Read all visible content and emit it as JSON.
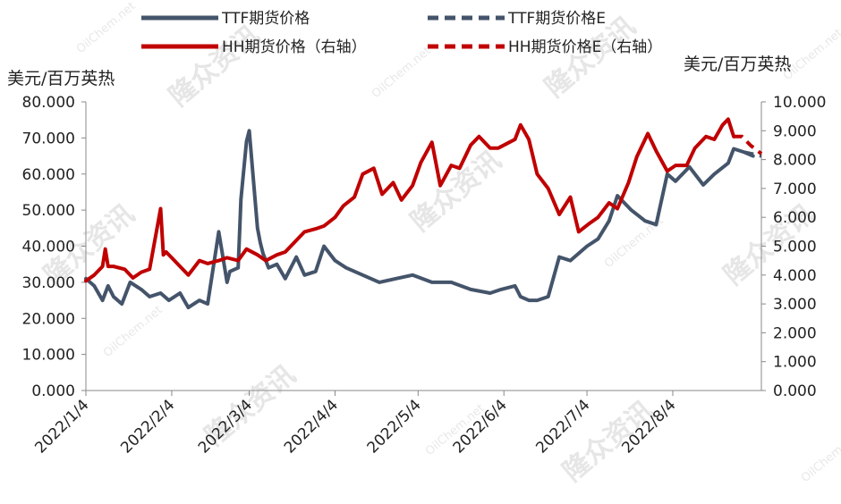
{
  "chart_data": {
    "type": "line",
    "left_axis_unit": "美元/百万英热",
    "right_axis_unit": "美元/百万英热",
    "left_ylim": [
      0,
      80
    ],
    "right_ylim": [
      0,
      10
    ],
    "left_ticks": [
      "0.000",
      "10.000",
      "20.000",
      "30.000",
      "40.000",
      "50.000",
      "60.000",
      "70.000",
      "80.000"
    ],
    "right_ticks": [
      "0.000",
      "1.000",
      "2.000",
      "3.000",
      "4.000",
      "5.000",
      "6.000",
      "7.000",
      "8.000",
      "9.000",
      "10.000"
    ],
    "x_tick_labels": [
      "2022/1/4",
      "2022/2/4",
      "2022/3/4",
      "2022/4/4",
      "2022/5/4",
      "2022/6/4",
      "2022/7/4",
      "2022/8/4"
    ],
    "legend": [
      {
        "label": "TTF期货价格",
        "color": "#44546a",
        "dash": "solid",
        "row": 0,
        "col": 0
      },
      {
        "label": "TTF期货价格E",
        "color": "#44546a",
        "dash": "dashed",
        "row": 0,
        "col": 1
      },
      {
        "label": "HH期货价格（右轴）",
        "color": "#c00000",
        "dash": "solid",
        "row": 1,
        "col": 0
      },
      {
        "label": "HH期货价格E（右轴）",
        "color": "#c00000",
        "dash": "dashed",
        "row": 1,
        "col": 1
      }
    ],
    "series": [
      {
        "name": "TTF期货价格",
        "axis": "left",
        "color": "#44546a",
        "dash": "solid",
        "x": [
          "2022-01-04",
          "2022-01-07",
          "2022-01-10",
          "2022-01-12",
          "2022-01-14",
          "2022-01-17",
          "2022-01-20",
          "2022-01-24",
          "2022-01-27",
          "2022-01-31",
          "2022-02-03",
          "2022-02-07",
          "2022-02-10",
          "2022-02-14",
          "2022-02-17",
          "2022-02-21",
          "2022-02-24",
          "2022-02-25",
          "2022-02-28",
          "2022-03-01",
          "2022-03-02",
          "2022-03-03",
          "2022-03-04",
          "2022-03-07",
          "2022-03-08",
          "2022-03-09",
          "2022-03-11",
          "2022-03-14",
          "2022-03-17",
          "2022-03-21",
          "2022-03-24",
          "2022-03-28",
          "2022-03-31",
          "2022-04-04",
          "2022-04-08",
          "2022-04-14",
          "2022-04-20",
          "2022-04-26",
          "2022-05-02",
          "2022-05-09",
          "2022-05-16",
          "2022-05-23",
          "2022-05-30",
          "2022-06-03",
          "2022-06-08",
          "2022-06-10",
          "2022-06-13",
          "2022-06-16",
          "2022-06-20",
          "2022-06-24",
          "2022-06-28",
          "2022-07-04",
          "2022-07-08",
          "2022-07-12",
          "2022-07-15",
          "2022-07-20",
          "2022-07-25",
          "2022-07-29",
          "2022-08-02",
          "2022-08-05",
          "2022-08-10",
          "2022-08-15",
          "2022-08-19",
          "2022-08-24",
          "2022-08-26",
          "2022-08-30",
          "2022-09-02"
        ],
        "values": [
          31,
          29,
          25,
          29,
          26,
          24,
          30,
          28,
          26,
          27,
          25,
          27,
          23,
          25,
          24,
          44,
          30,
          33,
          34,
          53,
          61,
          69,
          72,
          45,
          41,
          38,
          34,
          35,
          31,
          37,
          32,
          33,
          40,
          36,
          34,
          32,
          30,
          31,
          32,
          30,
          30,
          28,
          27,
          28,
          29,
          26,
          25,
          25,
          26,
          37,
          36,
          40,
          42,
          47,
          54,
          50,
          47,
          46,
          60,
          58,
          62,
          57,
          60,
          63,
          67,
          66,
          65
        ]
      },
      {
        "name": "TTF期货价格E",
        "axis": "left",
        "color": "#44546a",
        "dash": "dashed",
        "x": [
          "2022-08-30",
          "2022-09-02",
          "2022-09-05"
        ],
        "values": [
          66,
          65.5,
          65
        ]
      },
      {
        "name": "HH期货价格（右轴）",
        "axis": "right",
        "color": "#c00000",
        "dash": "solid",
        "x": [
          "2022-01-04",
          "2022-01-07",
          "2022-01-10",
          "2022-01-11",
          "2022-01-12",
          "2022-01-14",
          "2022-01-18",
          "2022-01-21",
          "2022-01-24",
          "2022-01-27",
          "2022-01-31",
          "2022-02-01",
          "2022-02-02",
          "2022-02-04",
          "2022-02-07",
          "2022-02-10",
          "2022-02-14",
          "2022-02-17",
          "2022-02-21",
          "2022-02-24",
          "2022-02-28",
          "2022-03-03",
          "2022-03-07",
          "2022-03-10",
          "2022-03-14",
          "2022-03-17",
          "2022-03-21",
          "2022-03-24",
          "2022-03-28",
          "2022-03-31",
          "2022-04-04",
          "2022-04-07",
          "2022-04-11",
          "2022-04-14",
          "2022-04-18",
          "2022-04-21",
          "2022-04-25",
          "2022-04-28",
          "2022-05-02",
          "2022-05-05",
          "2022-05-09",
          "2022-05-12",
          "2022-05-16",
          "2022-05-19",
          "2022-05-23",
          "2022-05-26",
          "2022-05-30",
          "2022-06-02",
          "2022-06-06",
          "2022-06-08",
          "2022-06-10",
          "2022-06-13",
          "2022-06-16",
          "2022-06-20",
          "2022-06-24",
          "2022-06-28",
          "2022-07-01",
          "2022-07-05",
          "2022-07-08",
          "2022-07-12",
          "2022-07-15",
          "2022-07-19",
          "2022-07-22",
          "2022-07-26",
          "2022-07-29",
          "2022-08-02",
          "2022-08-05",
          "2022-08-09",
          "2022-08-12",
          "2022-08-16",
          "2022-08-19",
          "2022-08-22",
          "2022-08-24",
          "2022-08-26"
        ],
        "values": [
          3.8,
          4.0,
          4.3,
          4.9,
          4.3,
          4.3,
          4.2,
          3.9,
          4.1,
          4.2,
          6.3,
          4.7,
          4.8,
          4.6,
          4.3,
          4.0,
          4.5,
          4.4,
          4.5,
          4.6,
          4.5,
          4.9,
          4.7,
          4.5,
          4.7,
          4.8,
          5.2,
          5.5,
          5.6,
          5.7,
          6.0,
          6.4,
          6.7,
          7.5,
          7.7,
          6.8,
          7.2,
          6.6,
          7.1,
          7.9,
          8.6,
          7.1,
          7.8,
          7.7,
          8.5,
          8.8,
          8.4,
          8.4,
          8.6,
          8.7,
          9.2,
          8.7,
          7.5,
          7.0,
          6.1,
          6.7,
          5.5,
          5.8,
          6.0,
          6.5,
          6.3,
          7.2,
          8.1,
          8.9,
          8.3,
          7.6,
          7.8,
          7.8,
          8.4,
          8.8,
          8.7,
          9.2,
          9.4,
          8.8
        ]
      },
      {
        "name": "HH期货价格E（右轴）",
        "axis": "right",
        "color": "#c00000",
        "dash": "dashed",
        "x": [
          "2022-08-26",
          "2022-08-29",
          "2022-09-01",
          "2022-09-05"
        ],
        "values": [
          8.8,
          8.8,
          8.5,
          8.2
        ]
      }
    ]
  },
  "watermark": {
    "brand": "隆众资讯",
    "domain": "OilChem.net"
  }
}
